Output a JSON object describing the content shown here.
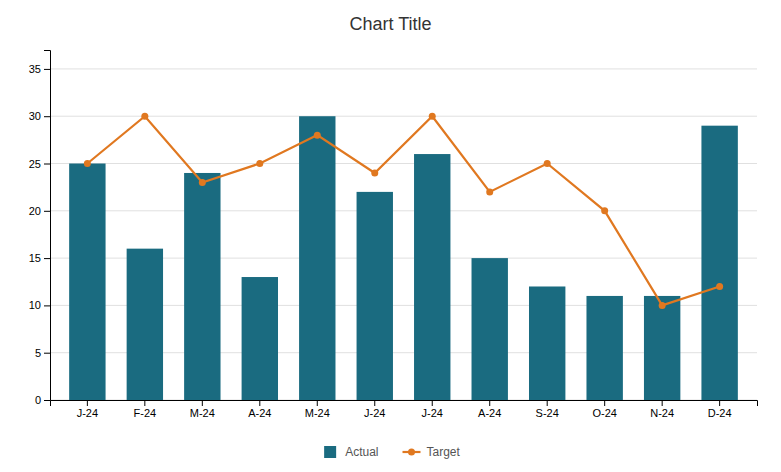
{
  "chart_data": {
    "type": "bar",
    "title": "Chart Title",
    "categories": [
      "J-24",
      "F-24",
      "M-24",
      "A-24",
      "M-24",
      "J-24",
      "J-24",
      "A-24",
      "S-24",
      "O-24",
      "N-24",
      "D-24"
    ],
    "series": [
      {
        "name": "Actual",
        "type": "bar",
        "color": "#1a6b80",
        "values": [
          25,
          16,
          24,
          13,
          30,
          22,
          26,
          15,
          12,
          11,
          11,
          29
        ]
      },
      {
        "name": "Target",
        "type": "line",
        "color": "#e07820",
        "marker": "circle",
        "values": [
          25,
          30,
          23,
          25,
          28,
          24,
          30,
          22,
          25,
          20,
          10,
          12
        ]
      }
    ],
    "ylim": [
      0,
      37
    ],
    "yticks": [
      0,
      5,
      10,
      15,
      20,
      25,
      30,
      35
    ],
    "grid": true,
    "legend": "bottom"
  }
}
